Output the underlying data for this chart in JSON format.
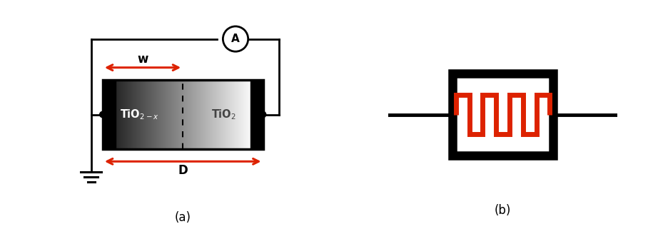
{
  "fig_width": 9.15,
  "fig_height": 3.21,
  "dpi": 100,
  "bg_color": "#ffffff",
  "label_a": "(a)",
  "label_b": "(b)",
  "red_color": "#dd2200",
  "black_color": "#000000",
  "tio2x_label": "TiO$_{2-x}$",
  "tio2_label": "TiO$_2$",
  "w_label": "w",
  "d_label": "D"
}
